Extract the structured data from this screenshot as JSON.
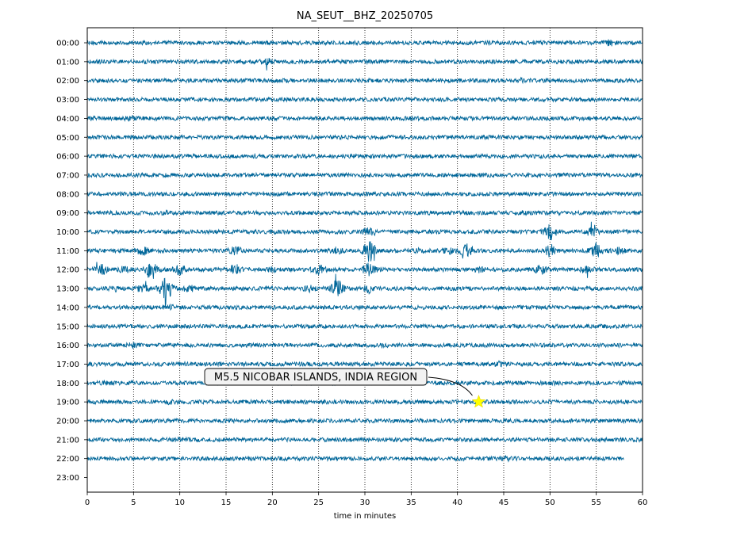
{
  "chart_data": {
    "type": "line",
    "title": "NA_SEUT__BHZ_20250705",
    "xlabel": "time in minutes",
    "ylabel": "",
    "xlim": [
      0,
      60
    ],
    "x_ticks": [
      0,
      5,
      10,
      15,
      20,
      25,
      30,
      35,
      40,
      45,
      50,
      55,
      60
    ],
    "y_tick_labels": [
      "00:00",
      "01:00",
      "02:00",
      "03:00",
      "04:00",
      "05:00",
      "06:00",
      "07:00",
      "08:00",
      "09:00",
      "10:00",
      "11:00",
      "12:00",
      "13:00",
      "14:00",
      "15:00",
      "16:00",
      "17:00",
      "18:00",
      "19:00",
      "20:00",
      "21:00",
      "22:00",
      "23:00"
    ],
    "grid": "vertical dotted lines at x ticks",
    "trace_color": "#006699",
    "traces": [
      {
        "hour": "00:00",
        "end_minute": 60,
        "bursts": [
          {
            "at": 56.5,
            "amp": 1.8
          }
        ]
      },
      {
        "hour": "01:00",
        "end_minute": 60,
        "bursts": [
          {
            "at": 19.5,
            "amp": 2.2
          },
          {
            "at": 6,
            "amp": 1.3
          }
        ]
      },
      {
        "hour": "02:00",
        "end_minute": 60,
        "bursts": [
          {
            "at": 47,
            "amp": 1.4
          }
        ]
      },
      {
        "hour": "03:00",
        "end_minute": 60,
        "bursts": []
      },
      {
        "hour": "04:00",
        "end_minute": 60,
        "bursts": [
          {
            "at": 4.8,
            "amp": 1.8
          },
          {
            "at": 0.5,
            "amp": 1.3
          }
        ]
      },
      {
        "hour": "05:00",
        "end_minute": 60,
        "bursts": [
          {
            "at": 43,
            "amp": 1.2
          }
        ]
      },
      {
        "hour": "06:00",
        "end_minute": 60,
        "bursts": []
      },
      {
        "hour": "07:00",
        "end_minute": 60,
        "bursts": []
      },
      {
        "hour": "08:00",
        "end_minute": 60,
        "bursts": []
      },
      {
        "hour": "09:00",
        "end_minute": 60,
        "bursts": [
          {
            "at": 8.5,
            "amp": 1.3
          },
          {
            "at": 47,
            "amp": 1.3
          }
        ]
      },
      {
        "hour": "10:00",
        "end_minute": 60,
        "bursts": [
          {
            "at": 50,
            "amp": 4.5
          },
          {
            "at": 30.5,
            "amp": 3.0
          },
          {
            "at": 54.5,
            "amp": 2.5
          },
          {
            "at": 20,
            "amp": 1.2
          }
        ]
      },
      {
        "hour": "11:00",
        "end_minute": 60,
        "bursts": [
          {
            "at": 30.5,
            "amp": 6.0
          },
          {
            "at": 41,
            "amp": 4.0
          },
          {
            "at": 55,
            "amp": 4.0
          },
          {
            "at": 50,
            "amp": 3.5
          },
          {
            "at": 39,
            "amp": 2.0
          },
          {
            "at": 57.5,
            "amp": 2.0
          },
          {
            "at": 27,
            "amp": 2.0
          },
          {
            "at": 16,
            "amp": 2.5
          },
          {
            "at": 6,
            "amp": 2.5
          },
          {
            "at": 36,
            "amp": 1.6
          }
        ]
      },
      {
        "hour": "12:00",
        "end_minute": 60,
        "bursts": [
          {
            "at": 7,
            "amp": 5.0
          },
          {
            "at": 30.5,
            "amp": 4.5
          },
          {
            "at": 1.5,
            "amp": 3.0
          },
          {
            "at": 10,
            "amp": 3.0
          },
          {
            "at": 16,
            "amp": 3.0
          },
          {
            "at": 25,
            "amp": 3.0
          },
          {
            "at": 42.5,
            "amp": 2.0
          },
          {
            "at": 49,
            "amp": 2.5
          },
          {
            "at": 54,
            "amp": 2.5
          },
          {
            "at": 4,
            "amp": 2.0
          },
          {
            "at": 20,
            "amp": 1.6
          }
        ]
      },
      {
        "hour": "13:00",
        "end_minute": 60,
        "bursts": [
          {
            "at": 8.5,
            "amp": 6.5
          },
          {
            "at": 27,
            "amp": 5.0
          },
          {
            "at": 30.5,
            "amp": 2.5
          },
          {
            "at": 6,
            "amp": 2.5
          },
          {
            "at": 3,
            "amp": 1.8
          },
          {
            "at": 11,
            "amp": 2.0
          },
          {
            "at": 24,
            "amp": 2.0
          }
        ]
      },
      {
        "hour": "14:00",
        "end_minute": 60,
        "bursts": [
          {
            "at": 9,
            "amp": 1.5
          }
        ]
      },
      {
        "hour": "15:00",
        "end_minute": 60,
        "bursts": []
      },
      {
        "hour": "16:00",
        "end_minute": 60,
        "bursts": [
          {
            "at": 5,
            "amp": 1.8
          },
          {
            "at": 32,
            "amp": 1.3
          }
        ]
      },
      {
        "hour": "17:00",
        "end_minute": 60,
        "bursts": [
          {
            "at": 44.5,
            "amp": 1.6
          },
          {
            "at": 10,
            "amp": 1.2
          }
        ]
      },
      {
        "hour": "18:00",
        "end_minute": 60,
        "bursts": [
          {
            "at": 2,
            "amp": 1.4
          },
          {
            "at": 50,
            "amp": 1.3
          }
        ]
      },
      {
        "hour": "19:00",
        "end_minute": 60,
        "bursts": [
          {
            "at": 9,
            "amp": 1.5
          }
        ]
      },
      {
        "hour": "20:00",
        "end_minute": 60,
        "bursts": [
          {
            "at": 8.5,
            "amp": 1.5
          }
        ]
      },
      {
        "hour": "21:00",
        "end_minute": 60,
        "bursts": [
          {
            "at": 10,
            "amp": 1.4
          }
        ]
      },
      {
        "hour": "22:00",
        "end_minute": 58,
        "bursts": [
          {
            "at": 45.5,
            "amp": 1.5
          }
        ]
      }
    ],
    "annotations": [
      {
        "text": "M5.5 NICOBAR ISLANDS, INDIA REGION",
        "marker": "star",
        "marker_color": "#ffff00",
        "x": 42.3,
        "hour": "19:00"
      }
    ]
  }
}
